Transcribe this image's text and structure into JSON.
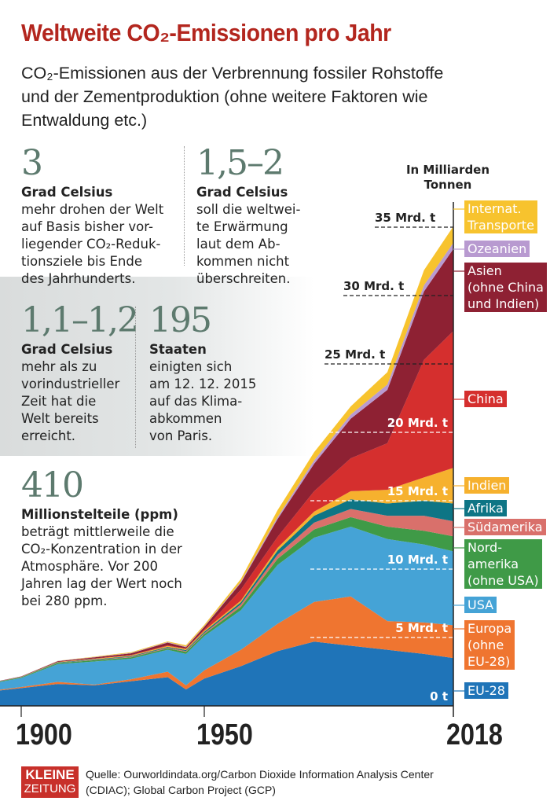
{
  "header": {
    "title": "Weltweite CO₂-Emissionen pro Jahr",
    "subtitle": "CO₂-Emissionen aus der Verbrennung fossiler Rohstoffe und der Zementproduktion (ohne weitere Faktoren wie Entwaldung etc.)"
  },
  "facts": [
    {
      "number": "3",
      "unit": "Grad Celsius",
      "text": "mehr drohen der Welt\nauf Basis bisher vor-\nliegender CO₂-Reduk-\ntionsziele bis Ende\ndes Jahrhunderts."
    },
    {
      "number": "1,5–2",
      "unit": "Grad Celsius",
      "text": "soll die weltwei-\nte Erwärmung\nlaut dem Ab-\nkommen nicht\nüberschreiten."
    },
    {
      "number": "1,1–1,2",
      "unit": "Grad Celsius",
      "text": "mehr als zu\nvorindustrieller\nZeit hat die\nWelt bereits\nerreicht."
    },
    {
      "number": "195",
      "unit": "Staaten",
      "text": "einigten sich\nam 12. 12. 2015\nauf das Klima-\nabkommen\nvon Paris."
    },
    {
      "number": "410",
      "unit": "Millionstelteile (ppm)",
      "text": "beträgt mittlerweile die\nCO₂-Konzentration in der\nAtmosphäre. Vor 200\nJahren lag der Wert noch\nbei 280 ppm."
    }
  ],
  "chart_data": {
    "type": "area",
    "stacked": true,
    "unit_label": "In Milliarden Tonnen",
    "x": [
      1890,
      1900,
      1910,
      1920,
      1930,
      1940,
      1945,
      1950,
      1960,
      1970,
      1980,
      1990,
      2000,
      2010,
      2018
    ],
    "xticks": [
      "1900",
      "1950",
      "2018"
    ],
    "xlim": [
      1890,
      2018
    ],
    "ylim": [
      0,
      37
    ],
    "yticks": [
      {
        "value": 0,
        "label": "0 t"
      },
      {
        "value": 5,
        "label": "5 Mrd. t"
      },
      {
        "value": 10,
        "label": "10 Mrd. t"
      },
      {
        "value": 15,
        "label": "15 Mrd. t"
      },
      {
        "value": 20,
        "label": "20 Mrd. t"
      },
      {
        "value": 25,
        "label": "25 Mrd. t"
      },
      {
        "value": 30,
        "label": "30 Mrd. t"
      },
      {
        "value": 35,
        "label": "35 Mrd. t"
      }
    ],
    "series": [
      {
        "name": "EU-28",
        "color": "#1f74b8",
        "values": [
          1.0,
          1.3,
          1.6,
          1.5,
          1.8,
          2.1,
          1.2,
          2.0,
          2.9,
          4.0,
          4.7,
          4.4,
          4.1,
          3.8,
          3.5
        ]
      },
      {
        "name": "Europa (ohne EU-28)",
        "color": "#ef7530",
        "values": [
          0.05,
          0.08,
          0.15,
          0.05,
          0.15,
          0.4,
          0.3,
          0.6,
          1.2,
          2.0,
          2.9,
          3.6,
          2.1,
          2.3,
          2.4
        ]
      },
      {
        "name": "USA",
        "color": "#45a3d6",
        "values": [
          0.5,
          0.66,
          1.3,
          1.7,
          1.5,
          1.6,
          2.3,
          2.5,
          2.9,
          4.3,
          4.7,
          5.1,
          6.0,
          5.7,
          5.4
        ]
      },
      {
        "name": "Nord-amerika (ohne USA)",
        "color": "#3f9a47",
        "values": [
          0.03,
          0.05,
          0.08,
          0.09,
          0.1,
          0.1,
          0.15,
          0.15,
          0.25,
          0.45,
          0.6,
          0.7,
          0.9,
          1.0,
          1.1
        ]
      },
      {
        "name": "Südamerika",
        "color": "#d9706b",
        "values": [
          0.005,
          0.01,
          0.02,
          0.03,
          0.04,
          0.05,
          0.06,
          0.07,
          0.18,
          0.3,
          0.5,
          0.6,
          0.8,
          1.1,
          1.1
        ]
      },
      {
        "name": "Afrika",
        "color": "#0e7585",
        "values": [
          0.005,
          0.01,
          0.03,
          0.04,
          0.05,
          0.06,
          0.07,
          0.1,
          0.15,
          0.3,
          0.5,
          0.7,
          0.9,
          1.1,
          1.3
        ]
      },
      {
        "name": "Indien",
        "color": "#f6b12e",
        "values": [
          0.01,
          0.015,
          0.03,
          0.04,
          0.05,
          0.07,
          0.08,
          0.08,
          0.12,
          0.2,
          0.3,
          0.6,
          1.0,
          1.7,
          2.6
        ]
      },
      {
        "name": "China",
        "color": "#d52f2e",
        "values": [
          0.0,
          0.0,
          0.01,
          0.02,
          0.03,
          0.05,
          0.03,
          0.08,
          0.8,
          0.8,
          1.5,
          2.4,
          3.4,
          8.6,
          10.0
        ]
      },
      {
        "name": "Asien (ohne China und Indien)",
        "color": "#8e2133",
        "values": [
          0.01,
          0.03,
          0.05,
          0.08,
          0.12,
          0.2,
          0.1,
          0.2,
          0.5,
          1.3,
          2.0,
          2.9,
          3.9,
          5.0,
          6.0
        ]
      },
      {
        "name": "Ozeanien",
        "color": "#b89ad0",
        "values": [
          0.005,
          0.01,
          0.02,
          0.02,
          0.03,
          0.03,
          0.04,
          0.04,
          0.08,
          0.15,
          0.25,
          0.3,
          0.4,
          0.45,
          0.45
        ]
      },
      {
        "name": "Internat. Transporte",
        "color": "#f7c32e",
        "values": [
          0.0,
          0.0,
          0.01,
          0.03,
          0.05,
          0.05,
          0.1,
          0.1,
          0.2,
          0.5,
          0.6,
          0.6,
          0.9,
          1.1,
          1.2
        ]
      }
    ],
    "legend": [
      {
        "label": "Internat.\nTransporte",
        "color": "#f7c32e"
      },
      {
        "label": "Ozeanien",
        "color": "#b89ad0"
      },
      {
        "label": "Asien\n(ohne China\nund Indien)",
        "color": "#8e2133"
      },
      {
        "label": "China",
        "color": "#d52f2e"
      },
      {
        "label": "Indien",
        "color": "#f6b12e"
      },
      {
        "label": "Afrika",
        "color": "#0e7585"
      },
      {
        "label": "Südamerika",
        "color": "#d9706b"
      },
      {
        "label": "Nord-\namerika\n(ohne USA)",
        "color": "#3f9a47"
      },
      {
        "label": "USA",
        "color": "#45a3d6"
      },
      {
        "label": "Europa\n(ohne\nEU-28)",
        "color": "#ef7530"
      },
      {
        "label": "EU-28",
        "color": "#1f74b8"
      }
    ]
  },
  "footer": {
    "logo_line1": "KLEINE",
    "logo_line2": "ZEITUNG",
    "source": "Quelle: Ourworldindata.org/Carbon Dioxide Information Analysis Center (CDIAC); Global Carbon Project (GCP)"
  }
}
